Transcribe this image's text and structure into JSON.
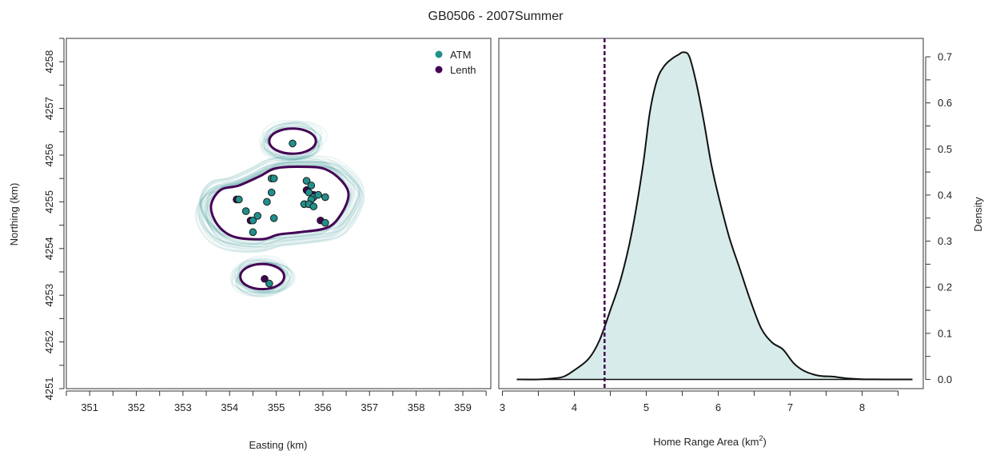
{
  "title": "GB0506 - 2007Summer",
  "colors": {
    "atm": "#21908C",
    "lenth": "#440154",
    "density_fill": "#D7ECEA",
    "ensemble": "#21908C"
  },
  "chart_data": [
    {
      "type": "scatter",
      "xlabel": "Easting (km)",
      "ylabel": "Northing (km)",
      "xlim": [
        350.5,
        359.6
      ],
      "ylim": [
        4251,
        4258.5
      ],
      "x_ticks": [
        "351",
        "352",
        "353",
        "354",
        "355",
        "356",
        "357",
        "358",
        "359"
      ],
      "y_ticks": [
        "4251",
        "4252",
        "4253",
        "4254",
        "4255",
        "4256",
        "4257",
        "4258"
      ],
      "legend": {
        "position": "top-right",
        "entries": [
          {
            "label": "ATM",
            "color": "#21908C"
          },
          {
            "label": "Lenth",
            "color": "#440154"
          }
        ]
      },
      "series": [
        {
          "name": "ATM",
          "points": [
            [
              355.35,
              4256.25
            ],
            [
              354.2,
              4255.05
            ],
            [
              354.35,
              4254.8
            ],
            [
              354.5,
              4254.6
            ],
            [
              354.6,
              4254.7
            ],
            [
              354.5,
              4254.35
            ],
            [
              354.9,
              4255.5
            ],
            [
              354.95,
              4255.5
            ],
            [
              354.9,
              4255.2
            ],
            [
              354.8,
              4255.0
            ],
            [
              354.95,
              4254.65
            ],
            [
              355.65,
              4255.45
            ],
            [
              355.75,
              4255.35
            ],
            [
              355.7,
              4255.2
            ],
            [
              355.8,
              4255.1
            ],
            [
              355.9,
              4255.15
            ],
            [
              356.05,
              4255.1
            ],
            [
              355.75,
              4255.05
            ],
            [
              355.6,
              4254.95
            ],
            [
              355.7,
              4254.95
            ],
            [
              355.8,
              4254.9
            ],
            [
              356.05,
              4254.55
            ],
            [
              354.85,
              4253.25
            ]
          ]
        },
        {
          "name": "Lenth",
          "points": [
            [
              354.15,
              4255.05
            ],
            [
              355.65,
              4255.25
            ],
            [
              355.95,
              4254.6
            ],
            [
              354.75,
              4253.35
            ],
            [
              355.8,
              4255.15
            ],
            [
              354.45,
              4254.6
            ]
          ]
        }
      ],
      "contours": [
        {
          "name": "Lenth",
          "center": [
            355.35,
            4256.3
          ],
          "shape": "ellipse",
          "rx": 0.5,
          "ry": 0.27
        },
        {
          "name": "Lenth",
          "shape": "polygon",
          "points": [
            [
              353.6,
              4254.9
            ],
            [
              353.75,
              4254.5
            ],
            [
              354.1,
              4254.25
            ],
            [
              354.7,
              4254.2
            ],
            [
              355.05,
              4254.3
            ],
            [
              355.5,
              4254.35
            ],
            [
              356.1,
              4254.45
            ],
            [
              356.4,
              4254.75
            ],
            [
              356.55,
              4255.15
            ],
            [
              356.4,
              4255.45
            ],
            [
              356.05,
              4255.7
            ],
            [
              355.6,
              4255.75
            ],
            [
              355.0,
              4255.72
            ],
            [
              354.65,
              4255.55
            ],
            [
              354.2,
              4255.35
            ],
            [
              353.8,
              4255.25
            ]
          ]
        },
        {
          "name": "Lenth",
          "center": [
            354.7,
            4253.4
          ],
          "shape": "ellipse",
          "rx": 0.47,
          "ry": 0.27
        }
      ]
    },
    {
      "type": "area",
      "xlabel_main": "Home Range Area (km",
      "xlabel_sup": "2",
      "xlabel_end": ")",
      "ylabel": "Density",
      "xlim": [
        2.95,
        8.85
      ],
      "ylim": [
        -0.02,
        0.74
      ],
      "x_ticks": [
        "3",
        "4",
        "5",
        "6",
        "7",
        "8"
      ],
      "y_ticks": [
        "0.0",
        "0.1",
        "0.2",
        "0.3",
        "0.4",
        "0.5",
        "0.6",
        "0.7"
      ],
      "y_axis_side": "right",
      "reference_line": {
        "x": 4.42,
        "style": "dashed",
        "color": "#440154"
      },
      "series": [
        {
          "x": [
            3.2,
            3.5,
            3.7,
            3.85,
            4.0,
            4.2,
            4.35,
            4.5,
            4.65,
            4.8,
            4.95,
            5.05,
            5.15,
            5.25,
            5.35,
            5.45,
            5.52,
            5.6,
            5.7,
            5.8,
            5.9,
            6.0,
            6.15,
            6.3,
            6.45,
            6.6,
            6.75,
            6.9,
            7.05,
            7.2,
            7.4,
            7.6,
            7.8,
            8.0,
            8.3,
            8.7
          ],
          "y": [
            0.0,
            0.0,
            0.002,
            0.006,
            0.02,
            0.045,
            0.085,
            0.15,
            0.22,
            0.32,
            0.46,
            0.58,
            0.65,
            0.68,
            0.695,
            0.705,
            0.71,
            0.7,
            0.64,
            0.56,
            0.47,
            0.4,
            0.31,
            0.24,
            0.17,
            0.11,
            0.08,
            0.065,
            0.035,
            0.018,
            0.008,
            0.006,
            0.002,
            0.0005,
            0.0,
            0.0
          ]
        }
      ]
    }
  ]
}
